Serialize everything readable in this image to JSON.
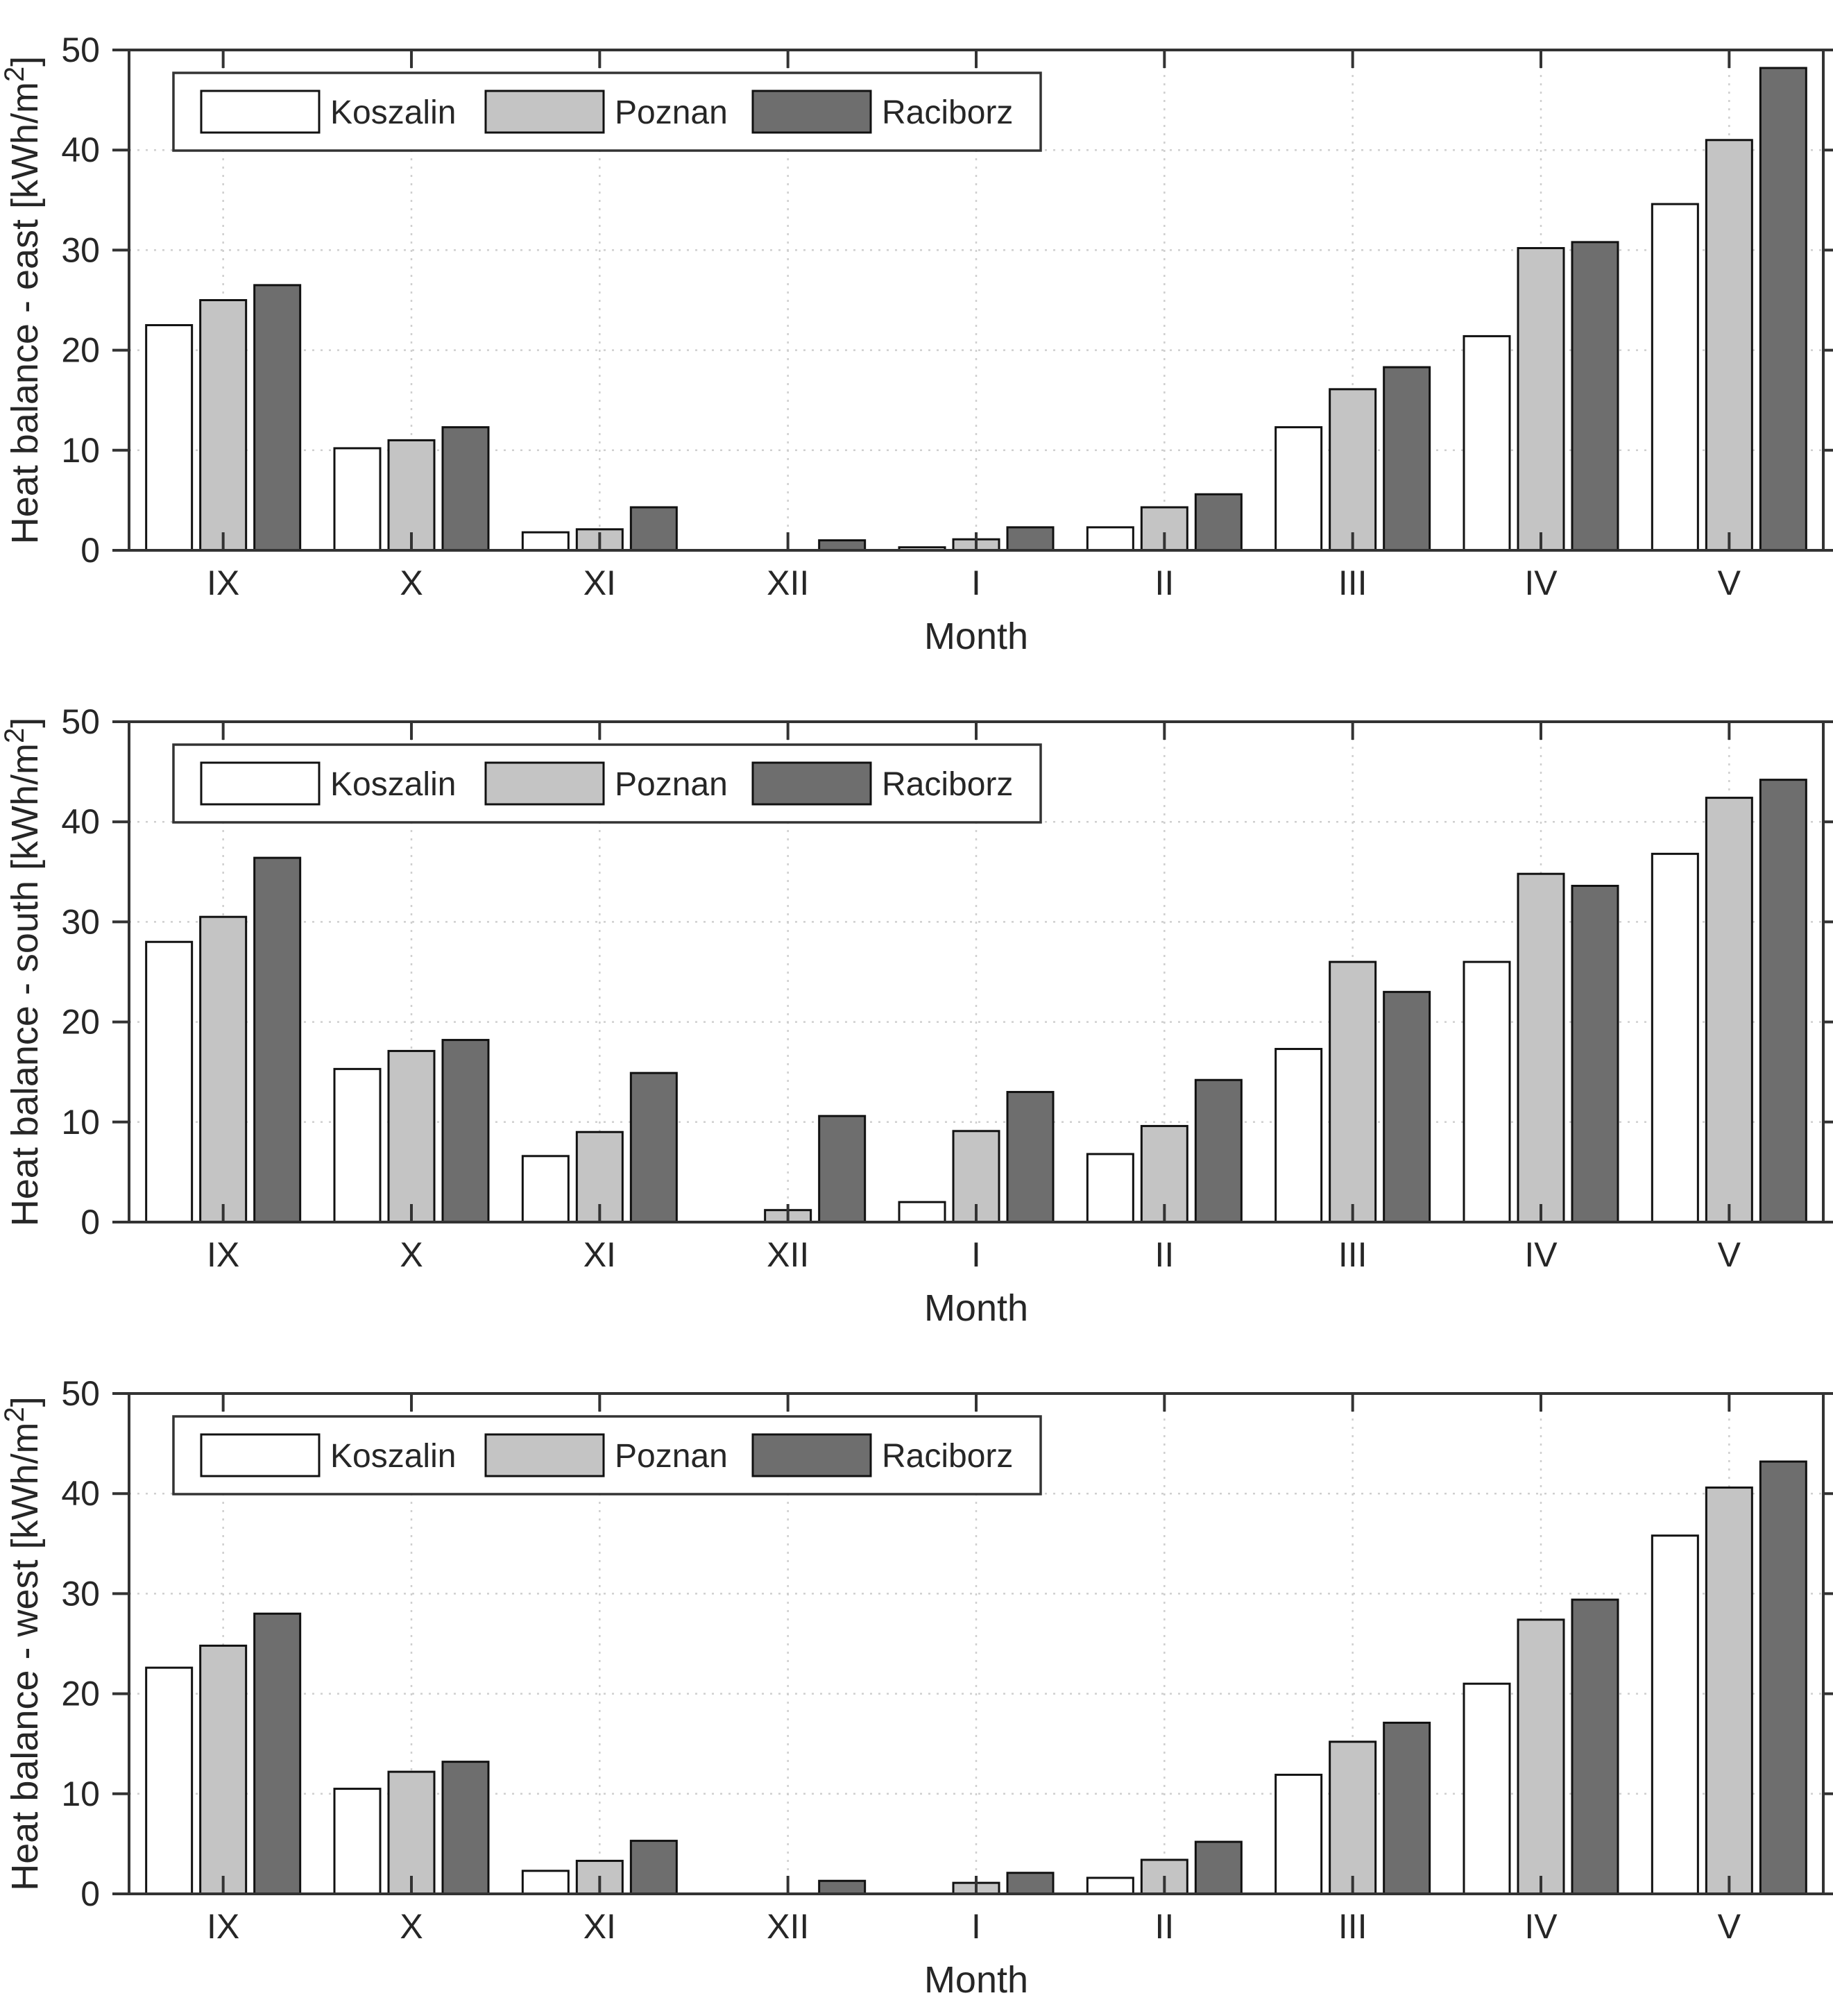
{
  "figure": {
    "background": "#ffffff",
    "font_color": "#262626",
    "axis_color": "#333333",
    "grid_color": "#cfcfcf",
    "bar_border": "#111111",
    "series_colors": {
      "Koszalin": "#ffffff",
      "Poznan": "#c4c4c4",
      "Raciborz": "#6e6e6e"
    }
  },
  "chart_data": [
    {
      "type": "bar",
      "ylabel": "Heat balance - east [kWh/m²]",
      "ylabel_parts": {
        "main": "Heat balance - east [kWh/m",
        "sup": "2",
        "end": "]"
      },
      "xlabel": "Month",
      "categories": [
        "IX",
        "X",
        "XI",
        "XII",
        "I",
        "II",
        "III",
        "IV",
        "V"
      ],
      "ylim": [
        0,
        50
      ],
      "y_ticks": [
        0,
        10,
        20,
        30,
        40,
        50
      ],
      "grid": true,
      "legend": {
        "position": "top-left-inside",
        "entries": [
          "Koszalin",
          "Poznan",
          "Raciborz"
        ]
      },
      "series": [
        {
          "name": "Koszalin",
          "color": "#ffffff",
          "values": [
            22.5,
            10.2,
            1.8,
            0,
            0.3,
            2.3,
            12.3,
            21.4,
            34.6
          ]
        },
        {
          "name": "Poznan",
          "color": "#c4c4c4",
          "values": [
            25.0,
            11.0,
            2.1,
            0,
            1.1,
            4.3,
            16.1,
            30.2,
            41.0
          ]
        },
        {
          "name": "Raciborz",
          "color": "#6e6e6e",
          "values": [
            26.5,
            12.3,
            4.3,
            1.0,
            2.3,
            5.6,
            18.3,
            30.8,
            48.2
          ]
        }
      ]
    },
    {
      "type": "bar",
      "ylabel": "Heat balance - south [kWh/m²]",
      "ylabel_parts": {
        "main": "Heat balance - south [kWh/m",
        "sup": "2",
        "end": "]"
      },
      "xlabel": "Month",
      "categories": [
        "IX",
        "X",
        "XI",
        "XII",
        "I",
        "II",
        "III",
        "IV",
        "V"
      ],
      "ylim": [
        0,
        50
      ],
      "y_ticks": [
        0,
        10,
        20,
        30,
        40,
        50
      ],
      "grid": true,
      "legend": {
        "position": "top-left-inside",
        "entries": [
          "Koszalin",
          "Poznan",
          "Raciborz"
        ]
      },
      "series": [
        {
          "name": "Koszalin",
          "color": "#ffffff",
          "values": [
            28.0,
            15.3,
            6.6,
            0,
            2.0,
            6.8,
            17.3,
            26.0,
            36.8
          ]
        },
        {
          "name": "Poznan",
          "color": "#c4c4c4",
          "values": [
            30.5,
            17.1,
            9.0,
            1.2,
            9.1,
            9.6,
            26.0,
            34.8,
            42.4
          ]
        },
        {
          "name": "Raciborz",
          "color": "#6e6e6e",
          "values": [
            36.4,
            18.2,
            14.9,
            10.6,
            13.0,
            14.2,
            23.0,
            33.6,
            44.2
          ]
        }
      ]
    },
    {
      "type": "bar",
      "ylabel": "Heat balance - west [kWh/m²]",
      "ylabel_parts": {
        "main": "Heat balance - west [kWh/m",
        "sup": "2",
        "end": "]"
      },
      "xlabel": "Month",
      "categories": [
        "IX",
        "X",
        "XI",
        "XII",
        "I",
        "II",
        "III",
        "IV",
        "V"
      ],
      "ylim": [
        0,
        50
      ],
      "y_ticks": [
        0,
        10,
        20,
        30,
        40,
        50
      ],
      "grid": true,
      "legend": {
        "position": "top-left-inside",
        "entries": [
          "Koszalin",
          "Poznan",
          "Raciborz"
        ]
      },
      "series": [
        {
          "name": "Koszalin",
          "color": "#ffffff",
          "values": [
            22.6,
            10.5,
            2.3,
            0,
            0,
            1.6,
            11.9,
            21.0,
            35.8
          ]
        },
        {
          "name": "Poznan",
          "color": "#c4c4c4",
          "values": [
            24.8,
            12.2,
            3.3,
            0,
            1.1,
            3.4,
            15.2,
            27.4,
            40.6
          ]
        },
        {
          "name": "Raciborz",
          "color": "#6e6e6e",
          "values": [
            28.0,
            13.2,
            5.3,
            1.3,
            2.1,
            5.2,
            17.1,
            29.4,
            43.2
          ]
        }
      ]
    }
  ]
}
